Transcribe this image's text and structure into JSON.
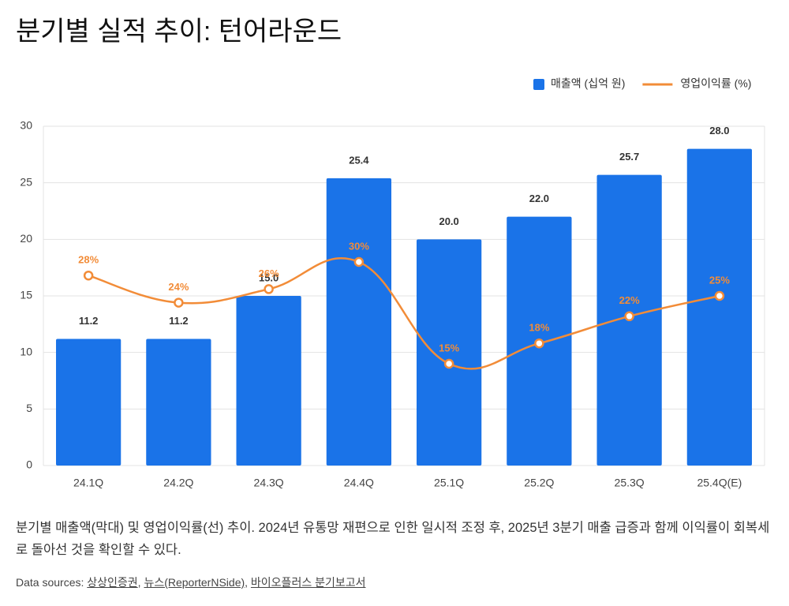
{
  "chart_data": {
    "type": "bar",
    "title": "분기별 실적 추이: 턴어라운드",
    "categories": [
      "24.1Q",
      "24.2Q",
      "24.3Q",
      "24.4Q",
      "25.1Q",
      "25.2Q",
      "25.3Q",
      "25.4Q(E)"
    ],
    "series": [
      {
        "name": "매출액 (십억 원)",
        "type": "bar",
        "color": "#1a73e8",
        "values": [
          11.2,
          11.2,
          15,
          25.4,
          20,
          22,
          25.7,
          28
        ],
        "value_labels": [
          "11.2",
          "11.2",
          "15.0",
          "25.4",
          "20.0",
          "22.0",
          "25.7",
          "28.0"
        ]
      },
      {
        "name": "영업이익률 (%)",
        "type": "line",
        "axis": "y2",
        "color": "#f28c38",
        "values": [
          28,
          24,
          26,
          30,
          15,
          18,
          22,
          25
        ],
        "value_labels": [
          "28%",
          "24%",
          "26%",
          "30%",
          "15%",
          "18%",
          "22%",
          "25%"
        ]
      }
    ],
    "ylim": [
      0,
      30
    ],
    "yticks": [
      0,
      5,
      10,
      15,
      20,
      25,
      30
    ],
    "y2lim": [
      0,
      50
    ],
    "grid": true,
    "legend": "top-right"
  },
  "caption": "분기별 매출액(막대) 및 영업이익률(선) 추이. 2024년 유통망 재편으로 인한 일시적 조정 후, 2025년 3분기 매출 급증과 함께 이익률이 회복세로 돌아선 것을 확인할 수 있다.",
  "sources": {
    "label": "Data sources:",
    "separator": ",",
    "links": [
      "상상인증권",
      "뉴스(ReporterNSide)",
      "바이오플러스 분기보고서"
    ]
  }
}
